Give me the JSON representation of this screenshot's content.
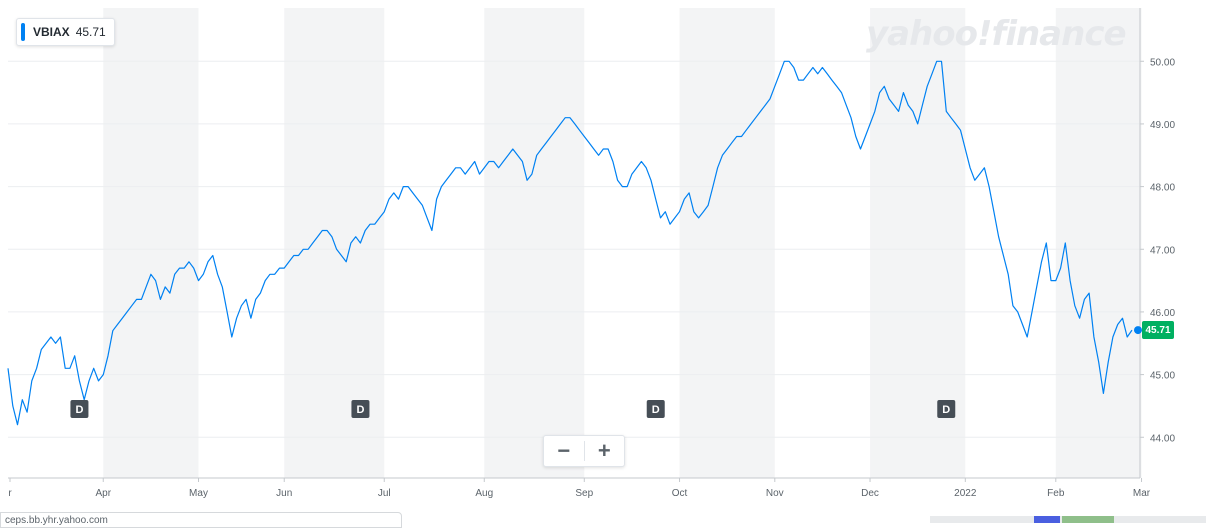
{
  "legend": {
    "symbol": "VBIAX",
    "value": "45.71",
    "color": "#0081f2"
  },
  "watermark": "yahoo!finance",
  "zoom": {
    "minus": "−",
    "plus": "+"
  },
  "price_tag": {
    "text": "45.71",
    "color": "#00b061"
  },
  "status_url": "ceps.bb.yhr.yahoo.com",
  "chart_data": {
    "type": "line",
    "symbol": "VBIAX",
    "line_color": "#0081f2",
    "ylim": [
      43.35,
      50.85
    ],
    "xlim": [
      0,
      236
    ],
    "y_ticks": [
      "44.00",
      "45.00",
      "46.00",
      "47.00",
      "48.00",
      "49.00",
      "50.00"
    ],
    "x_ticks": [
      {
        "label": "r",
        "x": 0
      },
      {
        "label": "Apr",
        "x": 20
      },
      {
        "label": "May",
        "x": 40
      },
      {
        "label": "Jun",
        "x": 58
      },
      {
        "label": "Jul",
        "x": 79
      },
      {
        "label": "Aug",
        "x": 100
      },
      {
        "label": "Sep",
        "x": 121
      },
      {
        "label": "Oct",
        "x": 141
      },
      {
        "label": "Nov",
        "x": 161
      },
      {
        "label": "Dec",
        "x": 181
      },
      {
        "label": "2022",
        "x": 201
      },
      {
        "label": "Feb",
        "x": 220
      },
      {
        "label": "Mar",
        "x": 238
      }
    ],
    "shaded_bands": [
      [
        20,
        40
      ],
      [
        58,
        79
      ],
      [
        100,
        121
      ],
      [
        141,
        161
      ],
      [
        181,
        201
      ],
      [
        220,
        238
      ]
    ],
    "dividend_markers": [
      {
        "label": "D",
        "x": 15
      },
      {
        "label": "D",
        "x": 74
      },
      {
        "label": "D",
        "x": 136
      },
      {
        "label": "D",
        "x": 197
      }
    ],
    "grid": true,
    "values": [
      45.1,
      44.5,
      44.2,
      44.6,
      44.4,
      44.9,
      45.1,
      45.4,
      45.5,
      45.6,
      45.5,
      45.6,
      45.1,
      45.1,
      45.3,
      44.9,
      44.6,
      44.9,
      45.1,
      44.9,
      45.0,
      45.3,
      45.7,
      45.8,
      45.9,
      46.0,
      46.1,
      46.2,
      46.2,
      46.4,
      46.6,
      46.5,
      46.2,
      46.4,
      46.3,
      46.6,
      46.7,
      46.7,
      46.8,
      46.7,
      46.5,
      46.6,
      46.8,
      46.9,
      46.6,
      46.4,
      46.0,
      45.6,
      45.9,
      46.1,
      46.2,
      45.9,
      46.2,
      46.3,
      46.5,
      46.6,
      46.6,
      46.7,
      46.7,
      46.8,
      46.9,
      46.9,
      47.0,
      47.0,
      47.1,
      47.2,
      47.3,
      47.3,
      47.2,
      47.0,
      46.9,
      46.8,
      47.1,
      47.2,
      47.1,
      47.3,
      47.4,
      47.4,
      47.5,
      47.6,
      47.8,
      47.9,
      47.8,
      48.0,
      48.0,
      47.9,
      47.8,
      47.7,
      47.5,
      47.3,
      47.8,
      48.0,
      48.1,
      48.2,
      48.3,
      48.3,
      48.2,
      48.3,
      48.4,
      48.2,
      48.3,
      48.4,
      48.4,
      48.3,
      48.4,
      48.5,
      48.6,
      48.5,
      48.4,
      48.1,
      48.2,
      48.5,
      48.6,
      48.7,
      48.8,
      48.9,
      49.0,
      49.1,
      49.1,
      49.0,
      48.9,
      48.8,
      48.7,
      48.6,
      48.5,
      48.6,
      48.6,
      48.4,
      48.1,
      48.0,
      48.0,
      48.2,
      48.3,
      48.4,
      48.3,
      48.1,
      47.8,
      47.5,
      47.6,
      47.4,
      47.5,
      47.6,
      47.8,
      47.9,
      47.6,
      47.5,
      47.6,
      47.7,
      48.0,
      48.3,
      48.5,
      48.6,
      48.7,
      48.8,
      48.8,
      48.9,
      49.0,
      49.1,
      49.2,
      49.3,
      49.4,
      49.6,
      49.8,
      50.0,
      50.0,
      49.9,
      49.7,
      49.7,
      49.8,
      49.9,
      49.8,
      49.9,
      49.8,
      49.7,
      49.6,
      49.5,
      49.3,
      49.1,
      48.8,
      48.6,
      48.8,
      49.0,
      49.2,
      49.5,
      49.6,
      49.4,
      49.3,
      49.2,
      49.5,
      49.3,
      49.2,
      49.0,
      49.3,
      49.6,
      49.8,
      50.0,
      50.0,
      49.2,
      49.1,
      49.0,
      48.9,
      48.6,
      48.3,
      48.1,
      48.2,
      48.3,
      48.0,
      47.6,
      47.2,
      46.9,
      46.6,
      46.1,
      46.0,
      45.8,
      45.6,
      46.0,
      46.4,
      46.8,
      47.1,
      46.5,
      46.5,
      46.7,
      47.1,
      46.5,
      46.1,
      45.9,
      46.2,
      46.3,
      45.6,
      45.2,
      44.7,
      45.2,
      45.6,
      45.8,
      45.9,
      45.6,
      45.71
    ]
  }
}
